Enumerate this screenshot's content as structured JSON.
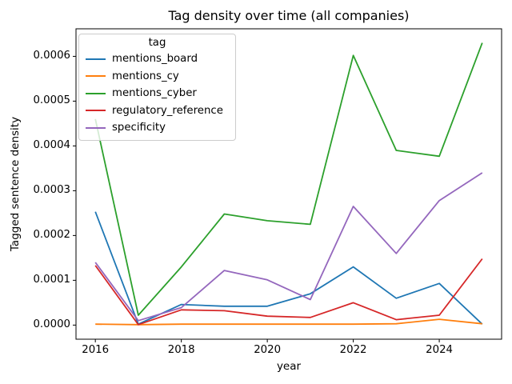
{
  "chart_data": {
    "type": "line",
    "title": "Tag density over time (all companies)",
    "xlabel": "year",
    "ylabel": "Tagged sentence density",
    "legend_title": "tag",
    "legend_position": "upper left",
    "grid": false,
    "x": [
      2016,
      2017,
      2018,
      2019,
      2020,
      2021,
      2022,
      2023,
      2024,
      2025
    ],
    "xlim": [
      2015.55,
      2025.45
    ],
    "ylim": [
      -3.15e-05,
      0.0006615
    ],
    "xticks": [
      "2016",
      "2018",
      "2020",
      "2022",
      "2024"
    ],
    "xtick_values": [
      2016,
      2018,
      2020,
      2022,
      2024
    ],
    "yticks": [
      "0.0000",
      "0.0001",
      "0.0002",
      "0.0003",
      "0.0004",
      "0.0005",
      "0.0006"
    ],
    "ytick_values": [
      0.0,
      0.0001,
      0.0002,
      0.0003,
      0.0004,
      0.0005,
      0.0006
    ],
    "series": [
      {
        "name": "mentions_board",
        "color": "#1f77b4",
        "values": [
          0.000253,
          2e-06,
          4.6e-05,
          4.2e-05,
          4.2e-05,
          7e-05,
          0.00013,
          6e-05,
          9.3e-05,
          2e-06
        ]
      },
      {
        "name": "mentions_cy",
        "color": "#ff7f0e",
        "values": [
          2e-06,
          1e-06,
          2e-06,
          2e-06,
          2e-06,
          2e-06,
          2e-06,
          3e-06,
          1.3e-05,
          3e-06
        ]
      },
      {
        "name": "mentions_cyber",
        "color": "#2ca02c",
        "values": [
          0.00046,
          2.2e-05,
          0.00013,
          0.000248,
          0.000233,
          0.000225,
          0.000602,
          0.00039,
          0.000377,
          0.00063
        ]
      },
      {
        "name": "regulatory_reference",
        "color": "#d62728",
        "values": [
          0.000133,
          1e-06,
          3.4e-05,
          3.2e-05,
          2e-05,
          1.7e-05,
          5e-05,
          1.2e-05,
          2.2e-05,
          0.000148
        ]
      },
      {
        "name": "specificity",
        "color": "#9467bd",
        "values": [
          0.00014,
          1e-05,
          3.9e-05,
          0.000122,
          0.000101,
          5.7e-05,
          0.000265,
          0.00016,
          0.000278,
          0.00034
        ]
      }
    ]
  }
}
